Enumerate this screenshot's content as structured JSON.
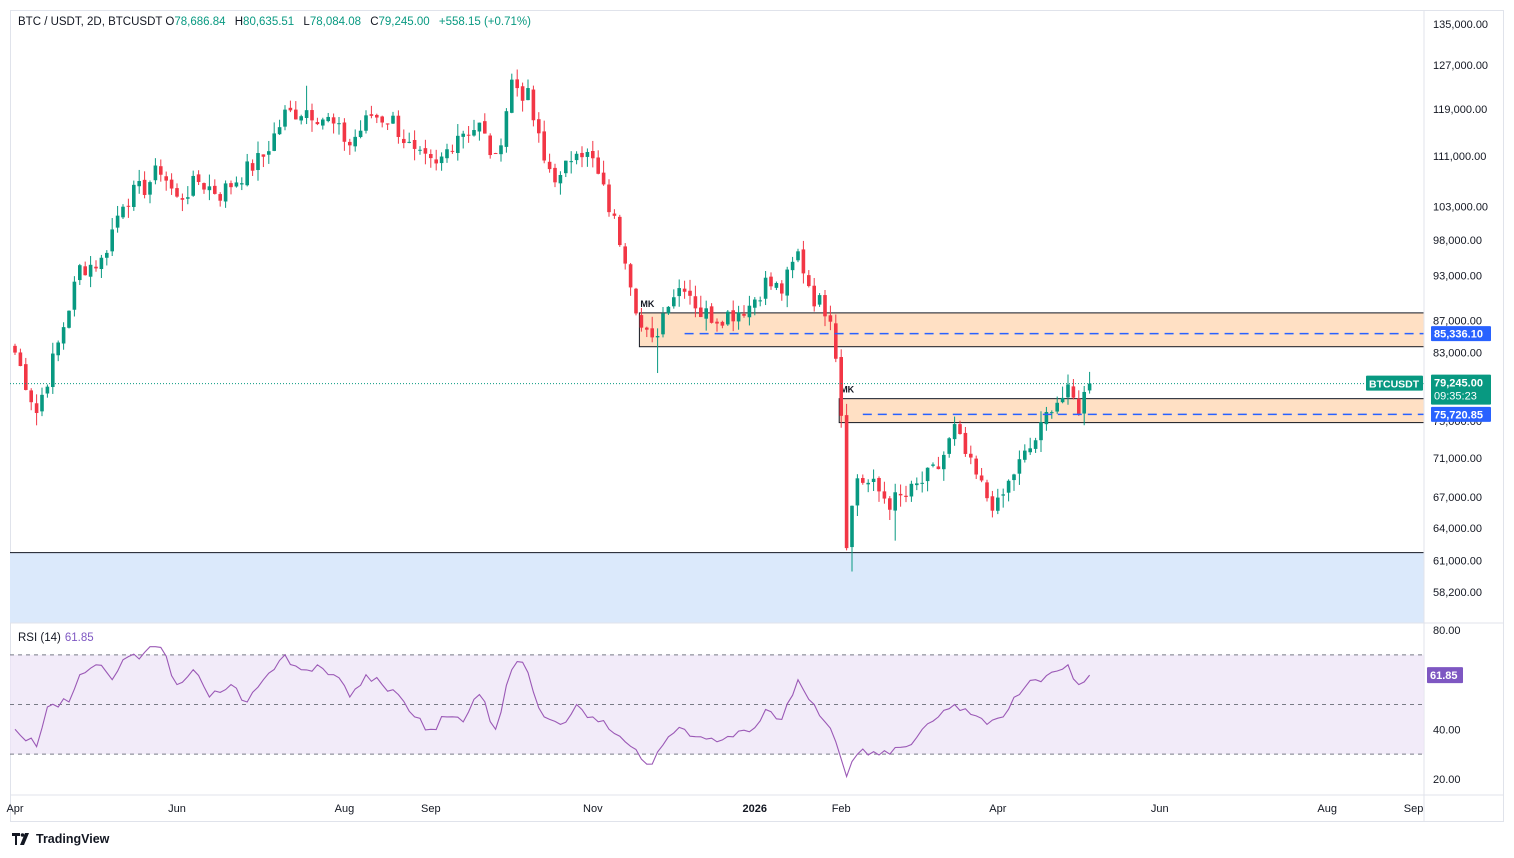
{
  "header": {
    "symbol": "BTC / USDT, 2D, BTCUSDT",
    "open_label": "O",
    "open": "78,686.84",
    "high_label": "H",
    "high": "80,635.51",
    "low_label": "L",
    "low": "78,084.08",
    "close_label": "C",
    "close": "79,245.00",
    "change": "+558.15 (+0.71%)"
  },
  "rsi_panel": {
    "label": "RSI (14)",
    "value": "61.85"
  },
  "branding": {
    "logo_text": "TradingView"
  },
  "colors": {
    "up": "#089981",
    "down": "#f23645",
    "zone_fill": "#ffe0c4",
    "support_fill": "#dbe9fb",
    "line_blue": "#2962ff",
    "rsi": "#9b59b6",
    "rsi_band": "#ede4f7"
  },
  "chart_data": [
    {
      "type": "candlestick",
      "title": "BTC / USDT, 2D, BTCUSDT",
      "y_scale": "log",
      "ylim": [
        56500,
        137000
      ],
      "y_ticks": [
        {
          "value": 135000,
          "label": "135,000.00"
        },
        {
          "value": 127000,
          "label": "127,000.00"
        },
        {
          "value": 119000,
          "label": "119,000.00"
        },
        {
          "value": 111000,
          "label": "111,000.00"
        },
        {
          "value": 103000,
          "label": "103,000.00"
        },
        {
          "value": 98000,
          "label": "98,000.00"
        },
        {
          "value": 93000,
          "label": "93,000.00"
        },
        {
          "value": 87000,
          "label": "87,000.00"
        },
        {
          "value": 83000,
          "label": "83,000.00"
        },
        {
          "value": 75000,
          "label": "75,000.00"
        },
        {
          "value": 71000,
          "label": "71,000.00"
        },
        {
          "value": 67000,
          "label": "67,000.00"
        },
        {
          "value": 64000,
          "label": "64,000.00"
        },
        {
          "value": 61000,
          "label": "61,000.00"
        },
        {
          "value": 58200,
          "label": "58,200.00"
        }
      ],
      "x_ticks": [
        {
          "label": "Apr",
          "bold": false,
          "index": 0
        },
        {
          "label": "Jun",
          "bold": false,
          "index": 30
        },
        {
          "label": "Aug",
          "bold": false,
          "index": 61
        },
        {
          "label": "Sep",
          "bold": false,
          "index": 77
        },
        {
          "label": "Nov",
          "bold": false,
          "index": 107
        },
        {
          "label": "2026",
          "bold": true,
          "index": 137
        },
        {
          "label": "Feb",
          "bold": false,
          "index": 153
        },
        {
          "label": "Apr",
          "bold": false,
          "index": 182
        },
        {
          "label": "Jun",
          "bold": false,
          "index": 212
        },
        {
          "label": "Aug",
          "bold": false,
          "index": 243
        },
        {
          "label": "Sep",
          "bold": false,
          "index": 259
        }
      ],
      "total_slots": 276,
      "anchors": [
        {
          "i": 0,
          "p": 83000
        },
        {
          "i": 4,
          "p": 76000
        },
        {
          "i": 8,
          "p": 84000
        },
        {
          "i": 12,
          "p": 94000
        },
        {
          "i": 16,
          "p": 95000
        },
        {
          "i": 20,
          "p": 104000
        },
        {
          "i": 24,
          "p": 106000
        },
        {
          "i": 27,
          "p": 109000
        },
        {
          "i": 30,
          "p": 104000
        },
        {
          "i": 34,
          "p": 107000
        },
        {
          "i": 38,
          "p": 105000
        },
        {
          "i": 42,
          "p": 108000
        },
        {
          "i": 46,
          "p": 111000
        },
        {
          "i": 50,
          "p": 118000
        },
        {
          "i": 54,
          "p": 119000
        },
        {
          "i": 58,
          "p": 117000
        },
        {
          "i": 62,
          "p": 113000
        },
        {
          "i": 66,
          "p": 118000
        },
        {
          "i": 70,
          "p": 117000
        },
        {
          "i": 74,
          "p": 111000
        },
        {
          "i": 78,
          "p": 109000
        },
        {
          "i": 82,
          "p": 115000
        },
        {
          "i": 86,
          "p": 116000
        },
        {
          "i": 89,
          "p": 110000
        },
        {
          "i": 92,
          "p": 124000
        },
        {
          "i": 95,
          "p": 121000
        },
        {
          "i": 98,
          "p": 110000
        },
        {
          "i": 101,
          "p": 107000
        },
        {
          "i": 104,
          "p": 113000
        },
        {
          "i": 107,
          "p": 110000
        },
        {
          "i": 110,
          "p": 103000
        },
        {
          "i": 113,
          "p": 96000
        },
        {
          "i": 116,
          "p": 86000
        },
        {
          "i": 118,
          "p": 84000
        },
        {
          "i": 121,
          "p": 90000
        },
        {
          "i": 124,
          "p": 92000
        },
        {
          "i": 127,
          "p": 88000
        },
        {
          "i": 130,
          "p": 87500
        },
        {
          "i": 133,
          "p": 88000
        },
        {
          "i": 136,
          "p": 89000
        },
        {
          "i": 139,
          "p": 92000
        },
        {
          "i": 142,
          "p": 91000
        },
        {
          "i": 145,
          "p": 96000
        },
        {
          "i": 148,
          "p": 90000
        },
        {
          "i": 151,
          "p": 88000
        },
        {
          "i": 152,
          "p": 83000
        },
        {
          "i": 153,
          "p": 76000
        },
        {
          "i": 154,
          "p": 63000
        },
        {
          "i": 156,
          "p": 69000
        },
        {
          "i": 159,
          "p": 68000
        },
        {
          "i": 162,
          "p": 66500
        },
        {
          "i": 165,
          "p": 67000
        },
        {
          "i": 168,
          "p": 68500
        },
        {
          "i": 171,
          "p": 70000
        },
        {
          "i": 174,
          "p": 74000
        },
        {
          "i": 177,
          "p": 70000
        },
        {
          "i": 180,
          "p": 67000
        },
        {
          "i": 182,
          "p": 66000
        },
        {
          "i": 185,
          "p": 69500
        },
        {
          "i": 188,
          "p": 72000
        },
        {
          "i": 190,
          "p": 74000
        },
        {
          "i": 192,
          "p": 77000
        },
        {
          "i": 195,
          "p": 78000
        },
        {
          "i": 197,
          "p": 76500
        },
        {
          "i": 199,
          "p": 79245
        }
      ],
      "notable_lows": [
        {
          "i": 4,
          "low": 74500
        },
        {
          "i": 119,
          "low": 80500
        },
        {
          "i": 155,
          "low": 60000
        },
        {
          "i": 163,
          "low": 62800
        },
        {
          "i": 181,
          "low": 65000
        }
      ],
      "notable_highs": [
        {
          "i": 93,
          "high": 126200
        },
        {
          "i": 54,
          "high": 123200
        },
        {
          "i": 146,
          "high": 97900
        }
      ],
      "zones": [
        {
          "label": "MK",
          "from_index": 116,
          "top": 88000,
          "bottom": 83700
        },
        {
          "label": "MK",
          "from_index": 153,
          "top": 77500,
          "bottom": 74800
        }
      ],
      "support_zone": {
        "top": 61700,
        "bottom": 56500
      },
      "levels": [
        {
          "value": 85336.1,
          "label": "85,336.10",
          "from_index": 124
        },
        {
          "value": 75720.85,
          "label": "75,720.85",
          "from_index": 157
        }
      ],
      "last_price": {
        "value": 79245.0,
        "label": "79,245.00",
        "symbol": "BTCUSDT",
        "countdown": "09:35:23"
      }
    },
    {
      "type": "line",
      "title": "RSI (14)",
      "ylim": [
        15,
        85
      ],
      "y_ticks": [
        {
          "value": 80,
          "label": "80.00"
        },
        {
          "value": 40,
          "label": "40.00"
        },
        {
          "value": 20,
          "label": "20.00"
        }
      ],
      "band": {
        "upper": 70,
        "middle": 50,
        "lower": 30
      },
      "last_value": {
        "value": 61.85,
        "label": "61.85"
      },
      "anchors": [
        {
          "i": 0,
          "v": 40
        },
        {
          "i": 4,
          "v": 33
        },
        {
          "i": 6,
          "v": 49
        },
        {
          "i": 10,
          "v": 51
        },
        {
          "i": 12,
          "v": 62
        },
        {
          "i": 15,
          "v": 66
        },
        {
          "i": 18,
          "v": 60
        },
        {
          "i": 20,
          "v": 68
        },
        {
          "i": 24,
          "v": 71
        },
        {
          "i": 27,
          "v": 73
        },
        {
          "i": 30,
          "v": 58
        },
        {
          "i": 33,
          "v": 64
        },
        {
          "i": 36,
          "v": 53
        },
        {
          "i": 40,
          "v": 58
        },
        {
          "i": 43,
          "v": 51
        },
        {
          "i": 46,
          "v": 60
        },
        {
          "i": 50,
          "v": 70
        },
        {
          "i": 53,
          "v": 64
        },
        {
          "i": 56,
          "v": 66
        },
        {
          "i": 59,
          "v": 62
        },
        {
          "i": 62,
          "v": 53
        },
        {
          "i": 65,
          "v": 62
        },
        {
          "i": 68,
          "v": 58
        },
        {
          "i": 71,
          "v": 54
        },
        {
          "i": 74,
          "v": 45
        },
        {
          "i": 77,
          "v": 40
        },
        {
          "i": 80,
          "v": 45
        },
        {
          "i": 83,
          "v": 43
        },
        {
          "i": 86,
          "v": 54
        },
        {
          "i": 89,
          "v": 40
        },
        {
          "i": 92,
          "v": 64
        },
        {
          "i": 94,
          "v": 67
        },
        {
          "i": 96,
          "v": 55
        },
        {
          "i": 98,
          "v": 45
        },
        {
          "i": 101,
          "v": 42
        },
        {
          "i": 104,
          "v": 50
        },
        {
          "i": 107,
          "v": 45
        },
        {
          "i": 110,
          "v": 40
        },
        {
          "i": 113,
          "v": 35
        },
        {
          "i": 116,
          "v": 28
        },
        {
          "i": 118,
          "v": 26
        },
        {
          "i": 121,
          "v": 37
        },
        {
          "i": 124,
          "v": 40
        },
        {
          "i": 127,
          "v": 37
        },
        {
          "i": 130,
          "v": 35
        },
        {
          "i": 133,
          "v": 37
        },
        {
          "i": 136,
          "v": 39
        },
        {
          "i": 139,
          "v": 48
        },
        {
          "i": 142,
          "v": 44
        },
        {
          "i": 145,
          "v": 60
        },
        {
          "i": 148,
          "v": 50
        },
        {
          "i": 150,
          "v": 43
        },
        {
          "i": 152,
          "v": 35
        },
        {
          "i": 153,
          "v": 28
        },
        {
          "i": 154,
          "v": 21
        },
        {
          "i": 156,
          "v": 30
        },
        {
          "i": 159,
          "v": 31
        },
        {
          "i": 162,
          "v": 30
        },
        {
          "i": 165,
          "v": 33
        },
        {
          "i": 168,
          "v": 40
        },
        {
          "i": 171,
          "v": 45
        },
        {
          "i": 174,
          "v": 50
        },
        {
          "i": 177,
          "v": 46
        },
        {
          "i": 180,
          "v": 42
        },
        {
          "i": 183,
          "v": 45
        },
        {
          "i": 186,
          "v": 54
        },
        {
          "i": 189,
          "v": 60
        },
        {
          "i": 192,
          "v": 63
        },
        {
          "i": 195,
          "v": 66
        },
        {
          "i": 197,
          "v": 58
        },
        {
          "i": 199,
          "v": 61.85
        }
      ]
    }
  ]
}
